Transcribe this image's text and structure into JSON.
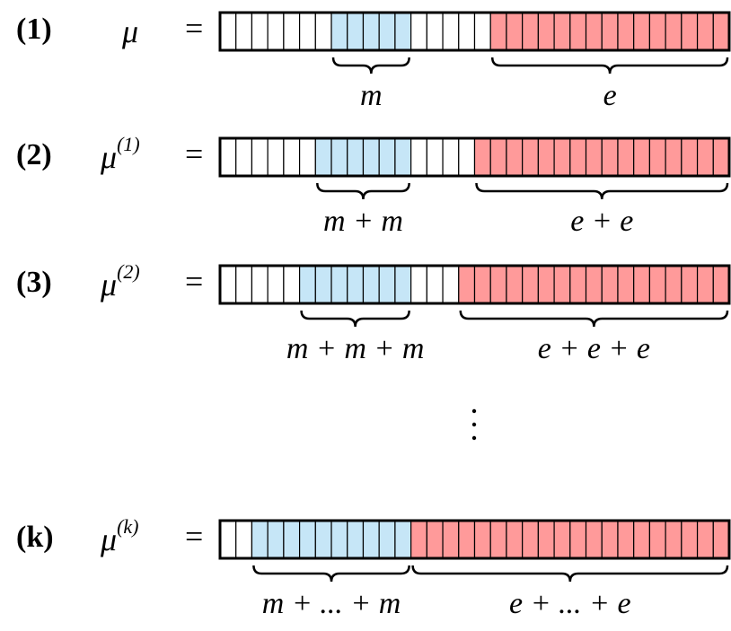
{
  "rows": [
    {
      "label": "(1)",
      "symbol": "μ",
      "sup": null,
      "equals": "=",
      "m_label": "m",
      "e_label": "e"
    },
    {
      "label": "(2)",
      "symbol": "μ",
      "sup": "(1)",
      "equals": "=",
      "m_label": "m + m",
      "e_label": "e + e"
    },
    {
      "label": "(3)",
      "symbol": "μ",
      "sup": "(2)",
      "equals": "=",
      "m_label": "m + m + m",
      "e_label": "e + e + e"
    },
    {
      "label": "(k)",
      "symbol": "μ",
      "sup": "(k)",
      "equals": "=",
      "m_label": "m + ... + m",
      "e_label": "e + ... + e"
    }
  ]
}
